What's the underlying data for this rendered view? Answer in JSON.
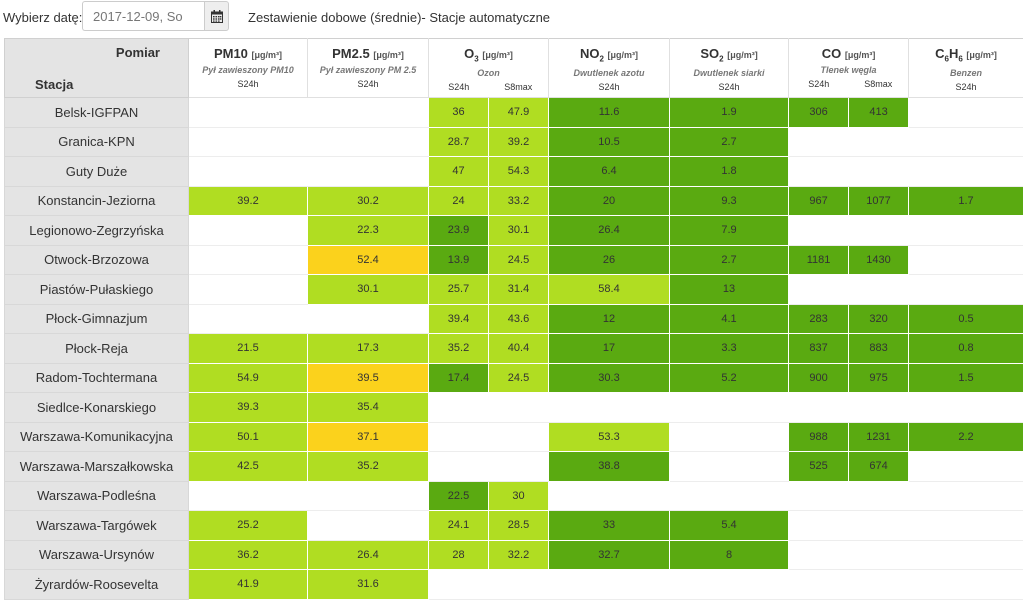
{
  "toolbar": {
    "date_label": "Wybierz datę:",
    "date_value": "2017-12-09, So",
    "title": "Zestawienie dobowe (średnie)- Stacje automatyczne"
  },
  "header": {
    "pomiar": "Pomiar",
    "stacja": "Stacja",
    "params": [
      {
        "pre": "PM10",
        "sub": "",
        "post": "",
        "unit": "[μg/m³]",
        "full": "Pył zawieszony PM10",
        "aggs": [
          "S24h"
        ]
      },
      {
        "pre": "PM2.5",
        "sub": "",
        "post": "",
        "unit": "[μg/m³]",
        "full": "Pył zawieszony PM 2.5",
        "aggs": [
          "S24h"
        ]
      },
      {
        "pre": "O",
        "sub": "3",
        "post": "",
        "unit": "[μg/m³]",
        "full": "Ozon",
        "aggs": [
          "S24h",
          "S8max"
        ]
      },
      {
        "pre": "NO",
        "sub": "2",
        "post": "",
        "unit": "[μg/m³]",
        "full": "Dwutlenek azotu",
        "aggs": [
          "S24h"
        ]
      },
      {
        "pre": "SO",
        "sub": "2",
        "post": "",
        "unit": "[μg/m³]",
        "full": "Dwutlenek siarki",
        "aggs": [
          "S24h"
        ]
      },
      {
        "pre": "CO",
        "sub": "",
        "post": "",
        "unit": "[μg/m³]",
        "full": "Tlenek węgla",
        "aggs": [
          "S24h",
          "S8max"
        ]
      },
      {
        "pre": "C",
        "sub": "6",
        "post": "H",
        "sub2": "6",
        "unit": "[μg/m³]",
        "full": "Benzen",
        "aggs": [
          "S24h"
        ]
      }
    ]
  },
  "colors": {
    "lime": "#b0dd22",
    "green": "#5aaa11",
    "yellow": "#fbd21c"
  },
  "rows": [
    {
      "station": "Belsk-IGFPAN",
      "cells": [
        [
          "",
          ""
        ],
        [
          "",
          ""
        ],
        [
          "36",
          "l"
        ],
        [
          "47.9",
          "l"
        ],
        [
          "11.6",
          "g"
        ],
        [
          "1.9",
          "g"
        ],
        [
          "306",
          "g"
        ],
        [
          "413",
          "g"
        ],
        [
          "",
          ""
        ]
      ]
    },
    {
      "station": "Granica-KPN",
      "cells": [
        [
          "",
          ""
        ],
        [
          "",
          ""
        ],
        [
          "28.7",
          "l"
        ],
        [
          "39.2",
          "l"
        ],
        [
          "10.5",
          "g"
        ],
        [
          "2.7",
          "g"
        ],
        [
          "",
          ""
        ],
        [
          "",
          ""
        ],
        [
          "",
          ""
        ]
      ]
    },
    {
      "station": "Guty Duże",
      "cells": [
        [
          "",
          ""
        ],
        [
          "",
          ""
        ],
        [
          "47",
          "l"
        ],
        [
          "54.3",
          "l"
        ],
        [
          "6.4",
          "g"
        ],
        [
          "1.8",
          "g"
        ],
        [
          "",
          ""
        ],
        [
          "",
          ""
        ],
        [
          "",
          ""
        ]
      ]
    },
    {
      "station": "Konstancin-Jeziorna",
      "cells": [
        [
          "39.2",
          "l"
        ],
        [
          "30.2",
          "l"
        ],
        [
          "24",
          "l"
        ],
        [
          "33.2",
          "l"
        ],
        [
          "20",
          "g"
        ],
        [
          "9.3",
          "g"
        ],
        [
          "967",
          "g"
        ],
        [
          "1077",
          "g"
        ],
        [
          "1.7",
          "g"
        ]
      ]
    },
    {
      "station": "Legionowo-Zegrzyńska",
      "cells": [
        [
          "",
          ""
        ],
        [
          "22.3",
          "l"
        ],
        [
          "23.9",
          "g"
        ],
        [
          "30.1",
          "l"
        ],
        [
          "26.4",
          "g"
        ],
        [
          "7.9",
          "g"
        ],
        [
          "",
          ""
        ],
        [
          "",
          ""
        ],
        [
          "",
          ""
        ]
      ]
    },
    {
      "station": "Otwock-Brzozowa",
      "cells": [
        [
          "",
          ""
        ],
        [
          "52.4",
          "y"
        ],
        [
          "13.9",
          "g"
        ],
        [
          "24.5",
          "l"
        ],
        [
          "26",
          "g"
        ],
        [
          "2.7",
          "g"
        ],
        [
          "1181",
          "g"
        ],
        [
          "1430",
          "g"
        ],
        [
          "",
          ""
        ]
      ]
    },
    {
      "station": "Piastów-Pułaskiego",
      "cells": [
        [
          "",
          ""
        ],
        [
          "30.1",
          "l"
        ],
        [
          "25.7",
          "l"
        ],
        [
          "31.4",
          "l"
        ],
        [
          "58.4",
          "l"
        ],
        [
          "13",
          "g"
        ],
        [
          "",
          ""
        ],
        [
          "",
          ""
        ],
        [
          "",
          ""
        ]
      ]
    },
    {
      "station": "Płock-Gimnazjum",
      "cells": [
        [
          "",
          ""
        ],
        [
          "",
          ""
        ],
        [
          "39.4",
          "l"
        ],
        [
          "43.6",
          "l"
        ],
        [
          "12",
          "g"
        ],
        [
          "4.1",
          "g"
        ],
        [
          "283",
          "g"
        ],
        [
          "320",
          "g"
        ],
        [
          "0.5",
          "g"
        ]
      ]
    },
    {
      "station": "Płock-Reja",
      "cells": [
        [
          "21.5",
          "l"
        ],
        [
          "17.3",
          "l"
        ],
        [
          "35.2",
          "l"
        ],
        [
          "40.4",
          "l"
        ],
        [
          "17",
          "g"
        ],
        [
          "3.3",
          "g"
        ],
        [
          "837",
          "g"
        ],
        [
          "883",
          "g"
        ],
        [
          "0.8",
          "g"
        ]
      ]
    },
    {
      "station": "Radom-Tochtermana",
      "cells": [
        [
          "54.9",
          "l"
        ],
        [
          "39.5",
          "y"
        ],
        [
          "17.4",
          "g"
        ],
        [
          "24.5",
          "l"
        ],
        [
          "30.3",
          "g"
        ],
        [
          "5.2",
          "g"
        ],
        [
          "900",
          "g"
        ],
        [
          "975",
          "g"
        ],
        [
          "1.5",
          "g"
        ]
      ]
    },
    {
      "station": "Siedlce-Konarskiego",
      "cells": [
        [
          "39.3",
          "l"
        ],
        [
          "35.4",
          "l"
        ],
        [
          "",
          ""
        ],
        [
          "",
          ""
        ],
        [
          "",
          ""
        ],
        [
          "",
          ""
        ],
        [
          "",
          ""
        ],
        [
          "",
          ""
        ],
        [
          "",
          ""
        ]
      ]
    },
    {
      "station": "Warszawa-Komunikacyjna",
      "cells": [
        [
          "50.1",
          "l"
        ],
        [
          "37.1",
          "y"
        ],
        [
          "",
          ""
        ],
        [
          "",
          ""
        ],
        [
          "53.3",
          "l"
        ],
        [
          "",
          ""
        ],
        [
          "988",
          "g"
        ],
        [
          "1231",
          "g"
        ],
        [
          "2.2",
          "g"
        ]
      ]
    },
    {
      "station": "Warszawa-Marszałkowska",
      "cells": [
        [
          "42.5",
          "l"
        ],
        [
          "35.2",
          "l"
        ],
        [
          "",
          ""
        ],
        [
          "",
          ""
        ],
        [
          "38.8",
          "g"
        ],
        [
          "",
          ""
        ],
        [
          "525",
          "g"
        ],
        [
          "674",
          "g"
        ],
        [
          "",
          ""
        ]
      ]
    },
    {
      "station": "Warszawa-Podleśna",
      "cells": [
        [
          "",
          ""
        ],
        [
          "",
          ""
        ],
        [
          "22.5",
          "g"
        ],
        [
          "30",
          "l"
        ],
        [
          "",
          ""
        ],
        [
          "",
          ""
        ],
        [
          "",
          ""
        ],
        [
          "",
          ""
        ],
        [
          "",
          ""
        ]
      ]
    },
    {
      "station": "Warszawa-Targówek",
      "cells": [
        [
          "25.2",
          "l"
        ],
        [
          "",
          ""
        ],
        [
          "24.1",
          "l"
        ],
        [
          "28.5",
          "l"
        ],
        [
          "33",
          "g"
        ],
        [
          "5.4",
          "g"
        ],
        [
          "",
          ""
        ],
        [
          "",
          ""
        ],
        [
          "",
          ""
        ]
      ]
    },
    {
      "station": "Warszawa-Ursynów",
      "cells": [
        [
          "36.2",
          "l"
        ],
        [
          "26.4",
          "l"
        ],
        [
          "28",
          "l"
        ],
        [
          "32.2",
          "l"
        ],
        [
          "32.7",
          "g"
        ],
        [
          "8",
          "g"
        ],
        [
          "",
          ""
        ],
        [
          "",
          ""
        ],
        [
          "",
          ""
        ]
      ]
    },
    {
      "station": "Żyrardów-Roosevelta",
      "cells": [
        [
          "41.9",
          "l"
        ],
        [
          "31.6",
          "l"
        ],
        [
          "",
          ""
        ],
        [
          "",
          ""
        ],
        [
          "",
          ""
        ],
        [
          "",
          ""
        ],
        [
          "",
          ""
        ],
        [
          "",
          ""
        ],
        [
          "",
          ""
        ]
      ]
    }
  ]
}
